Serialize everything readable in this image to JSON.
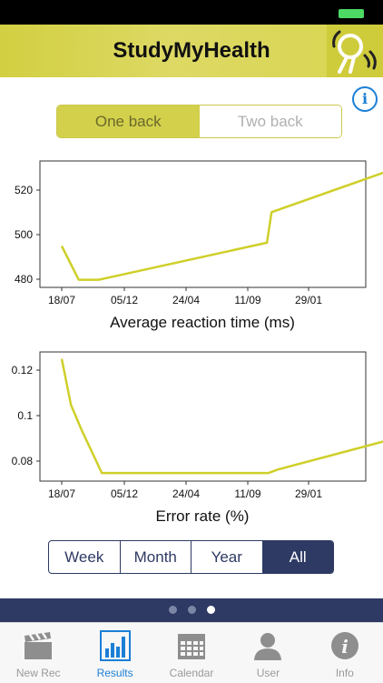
{
  "header": {
    "title": "StudyMyHealth"
  },
  "info_button": {
    "glyph": "i",
    "icon": "info-icon"
  },
  "mode_toggle": {
    "options": [
      "One back",
      "Two back"
    ],
    "selected": "One back"
  },
  "charts": [
    {
      "type": "line",
      "xlabel": "Average reaction time (ms)",
      "x_ticks": [
        "18/07",
        "05/12",
        "24/04",
        "11/09",
        "29/01"
      ],
      "y_ticks": [
        "520",
        "500",
        "480"
      ],
      "ylim": [
        476,
        534
      ],
      "points": [
        [
          0,
          495
        ],
        [
          0.55,
          479.5
        ],
        [
          1.2,
          479.5
        ],
        [
          6.65,
          496.5
        ],
        [
          6.8,
          510.5
        ],
        [
          10.8,
          530.5
        ]
      ],
      "color": "#cfcf2a"
    },
    {
      "type": "line",
      "xlabel": "Error rate (%)",
      "x_ticks": [
        "18/07",
        "05/12",
        "24/04",
        "11/09",
        "29/01"
      ],
      "y_ticks": [
        "0.12",
        "0.1",
        "0.08"
      ],
      "ylim": [
        0.071,
        0.127
      ],
      "points": [
        [
          0,
          0.124
        ],
        [
          0.3,
          0.104
        ],
        [
          0.65,
          0.093
        ],
        [
          1.3,
          0.0745
        ],
        [
          6.7,
          0.0745
        ],
        [
          7.0,
          0.076
        ],
        [
          10.8,
          0.0895
        ]
      ],
      "color": "#cfcf2a"
    }
  ],
  "chart_data": [
    {
      "type": "line",
      "xlabel": "Average reaction time (ms)",
      "ylabel": "",
      "x_tick_labels": [
        "18/07",
        "05/12",
        "24/04",
        "11/09",
        "29/01"
      ],
      "y_tick_labels": [
        520,
        500,
        480
      ],
      "ylim": [
        476,
        534
      ],
      "series": [
        {
          "values": [
            495,
            479.5,
            479.5,
            496.5,
            510.5,
            530.5
          ]
        }
      ]
    },
    {
      "type": "line",
      "xlabel": "Error rate (%)",
      "ylabel": "",
      "x_tick_labels": [
        "18/07",
        "05/12",
        "24/04",
        "11/09",
        "29/01"
      ],
      "y_tick_labels": [
        0.12,
        0.1,
        0.08
      ],
      "ylim": [
        0.071,
        0.127
      ],
      "series": [
        {
          "values": [
            0.124,
            0.104,
            0.093,
            0.0745,
            0.0745,
            0.076,
            0.0895
          ]
        }
      ]
    }
  ],
  "range_selector": {
    "options": [
      "Week",
      "Month",
      "Year",
      "All"
    ],
    "selected": "All"
  },
  "pager": {
    "count": 3,
    "active": 2
  },
  "tabbar": {
    "items": [
      {
        "label": "New Rec",
        "icon": "clapperboard-icon"
      },
      {
        "label": "Results",
        "icon": "bar-chart-icon"
      },
      {
        "label": "Calendar",
        "icon": "calendar-icon"
      },
      {
        "label": "User",
        "icon": "user-icon"
      },
      {
        "label": "Info",
        "icon": "info-icon"
      }
    ],
    "selected": "Results"
  },
  "colors": {
    "accent": "#d3d04c",
    "navy": "#2e3a64",
    "tab_selected": "#1b7fd6",
    "line": "#cfcf2a"
  }
}
